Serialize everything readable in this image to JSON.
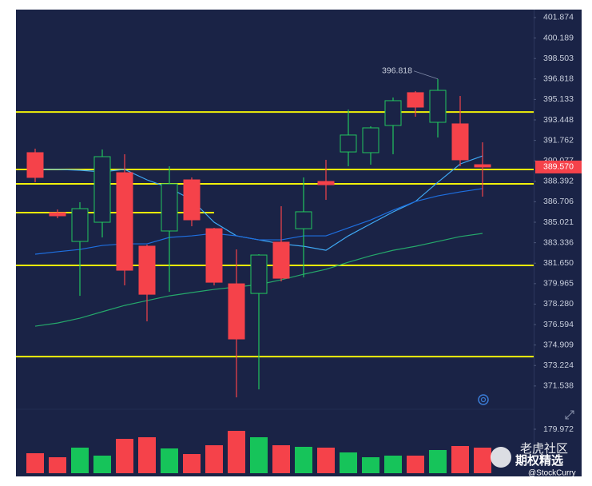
{
  "chart_data": {
    "type": "candlestick",
    "open": [
      390.75,
      385.81,
      383.44,
      385.02,
      389.1,
      383.05,
      384.3,
      388.51,
      384.49,
      379.95,
      379.16,
      383.38,
      384.49,
      388.38,
      390.81,
      390.75,
      392.99,
      395.69,
      393.25,
      393.12,
      389.76
    ],
    "high": [
      391.08,
      386.07,
      386.67,
      391.01,
      390.62,
      383.18,
      389.63,
      388.71,
      384.56,
      382.78,
      382.39,
      386.34,
      388.71,
      390.16,
      394.3,
      392.92,
      395.29,
      395.82,
      396.818,
      395.42,
      391.6
    ],
    "low": [
      388.31,
      385.35,
      378.96,
      383.77,
      379.82,
      376.86,
      379.29,
      384.69,
      379.82,
      370.6,
      371.26,
      380.15,
      380.48,
      386.86,
      389.63,
      389.76,
      390.62,
      393.71,
      392.0,
      389.63,
      387.13
    ],
    "close": [
      388.71,
      385.55,
      386.14,
      390.42,
      381.07,
      379.09,
      388.18,
      385.22,
      380.08,
      375.41,
      382.32,
      380.41,
      385.88,
      388.11,
      392.2,
      392.79,
      395.03,
      394.5,
      395.88,
      390.16,
      389.57
    ],
    "volume": [
      81.8,
      65.4,
      104.7,
      72.0,
      140.7,
      147.3,
      101.4,
      78.5,
      114.5,
      173.4,
      147.3,
      114.5,
      108.0,
      104.7,
      85.1,
      65.4,
      72.0,
      72.0,
      94.9,
      111.3,
      104.7
    ],
    "up_color": "#22c55e",
    "down_color": "#f5424a",
    "moving_averages": [
      {
        "color": "#3fa9f5",
        "values": [
          389.37,
          389.37,
          389.3,
          389.17,
          389.37,
          388.51,
          387.85,
          386.86,
          385.02,
          383.9,
          383.57,
          383.24,
          383.04,
          382.71,
          383.9,
          384.89,
          385.87,
          386.73,
          388.31,
          389.82,
          390.48
        ]
      },
      {
        "color": "#1e6fe0",
        "values": [
          382.39,
          382.59,
          382.78,
          383.11,
          383.24,
          383.24,
          383.77,
          383.9,
          384.1,
          383.9,
          383.57,
          383.57,
          383.9,
          383.9,
          384.56,
          385.21,
          386.01,
          386.73,
          387.19,
          387.52,
          387.79
        ]
      },
      {
        "color": "#25a86b",
        "values": [
          376.46,
          376.72,
          377.12,
          377.65,
          378.17,
          378.57,
          378.96,
          379.23,
          379.49,
          379.69,
          379.89,
          380.28,
          380.74,
          381.14,
          381.73,
          382.26,
          382.71,
          383.04,
          383.44,
          383.84,
          384.1
        ]
      }
    ],
    "lines": [
      {
        "value": 394.1,
        "color": "#f2f20a"
      },
      {
        "value": 389.37,
        "color": "#f2f20a"
      },
      {
        "value": 388.18,
        "color": "#f2f20a"
      },
      {
        "value": 385.81,
        "color": "#f2f20a",
        "end_index": 8
      },
      {
        "value": 381.47,
        "color": "#f2f20a"
      },
      {
        "value": 373.96,
        "color": "#f2f20a"
      }
    ],
    "ylim": [
      370.41,
      402.53
    ],
    "yticks": [
      401.874,
      400.189,
      398.503,
      396.818,
      395.133,
      393.448,
      391.762,
      390.077,
      388.392,
      386.706,
      385.021,
      383.336,
      {
        "value": 381.65,
        "label": "381.650"
      },
      379.965,
      {
        "value": 378.28,
        "label": "378.280"
      },
      376.594,
      374.909,
      373.224,
      371.538
    ],
    "last_price": {
      "value": 389.57,
      "label": "389.570"
    },
    "high_annotation": {
      "value": 396.818,
      "label": "396.818",
      "index": 18
    },
    "volume_ylim": [
      0,
      179.972
    ],
    "volume_yticks": [
      179.972
    ],
    "watermark": [
      "老虎社区",
      "期权精选",
      "@StockCurry"
    ]
  }
}
